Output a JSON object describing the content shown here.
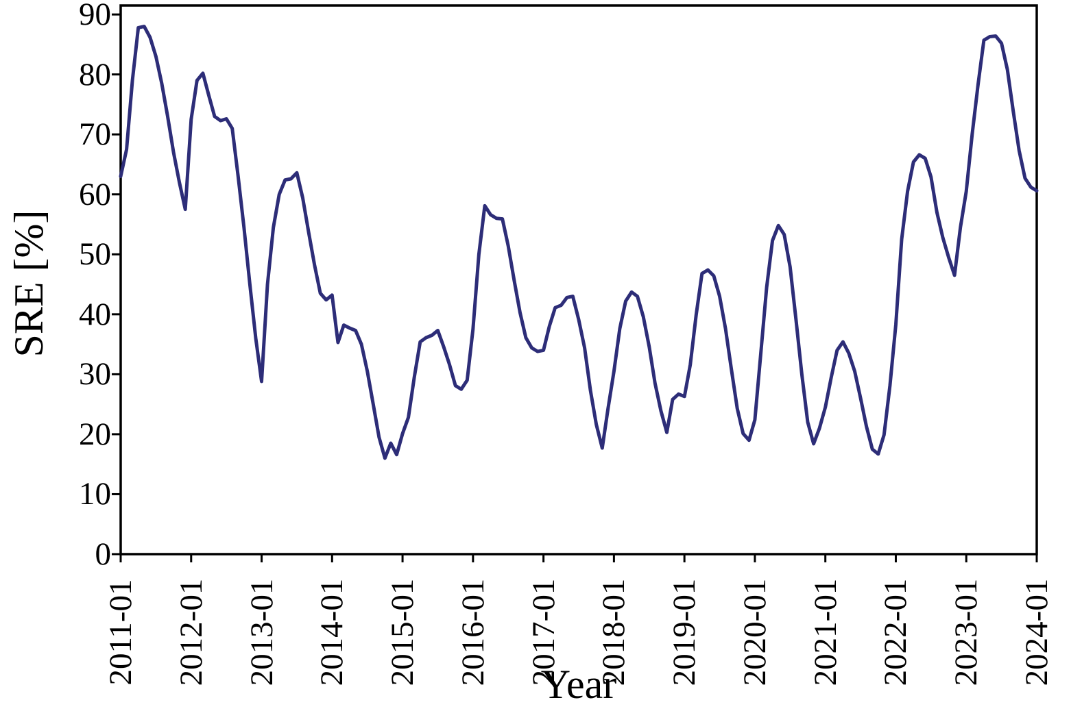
{
  "figure": {
    "background": "#ffffff",
    "xlabel": "Year",
    "ylabel": "SRE [%]"
  },
  "chart_data": {
    "type": "line",
    "title": "",
    "xlabel": "Year",
    "ylabel": "SRE [%]",
    "x_start": "2011-01",
    "x_end": "2024-01",
    "x_frequency": "monthly",
    "x_tick_labels": [
      "2011-01",
      "2012-01",
      "2013-01",
      "2014-01",
      "2015-01",
      "2016-01",
      "2017-01",
      "2018-01",
      "2019-01",
      "2020-01",
      "2021-01",
      "2022-01",
      "2023-01",
      "2024-01"
    ],
    "x_tick_every_n_points": 12,
    "y_ticks": [
      0,
      10,
      20,
      30,
      40,
      50,
      60,
      70,
      80,
      90
    ],
    "ylim": [
      0,
      91.5
    ],
    "grid": false,
    "legend": "none",
    "line_color": "#2d2d78",
    "axis_color": "#000000",
    "series": [
      {
        "name": "SRE [%]",
        "values": [
          63.0,
          67.5,
          79.0,
          87.8,
          88.0,
          86.2,
          83.0,
          78.5,
          73.0,
          67.0,
          62.0,
          57.5,
          72.5,
          79.0,
          80.2,
          76.5,
          73.0,
          72.3,
          72.6,
          71.0,
          63.0,
          54.5,
          45.0,
          36.0,
          28.8,
          45.0,
          54.5,
          60.0,
          62.4,
          62.6,
          63.6,
          59.4,
          53.7,
          48.3,
          43.5,
          42.4,
          43.2,
          35.3,
          38.2,
          37.7,
          37.3,
          35.0,
          30.5,
          25.0,
          19.5,
          16.0,
          18.5,
          16.6,
          20.1,
          22.8,
          29.5,
          35.4,
          36.1,
          36.5,
          37.3,
          34.6,
          31.6,
          28.1,
          27.5,
          29.0,
          37.5,
          50.0,
          58.1,
          56.6,
          56.0,
          55.9,
          51.4,
          45.7,
          40.3,
          36.1,
          34.4,
          33.8,
          34.0,
          38.0,
          41.1,
          41.5,
          42.8,
          43.0,
          39.1,
          34.4,
          27.3,
          21.6,
          17.7,
          24.3,
          30.5,
          37.6,
          42.2,
          43.7,
          43.0,
          39.6,
          34.6,
          28.5,
          23.9,
          20.3,
          25.8,
          26.7,
          26.3,
          31.6,
          39.9,
          46.8,
          47.4,
          46.4,
          43.0,
          37.6,
          30.8,
          24.3,
          20.1,
          19.0,
          22.4,
          33.4,
          44.5,
          52.3,
          54.8,
          53.3,
          47.9,
          39.1,
          30.0,
          22.0,
          18.4,
          21.0,
          24.5,
          29.5,
          34.0,
          35.4,
          33.5,
          30.5,
          26.0,
          21.3,
          17.5,
          16.7,
          19.9,
          28.1,
          38.3,
          52.5,
          60.5,
          65.4,
          66.6,
          66.0,
          62.9,
          57.0,
          52.8,
          49.5,
          46.5,
          54.5,
          60.5,
          70.0,
          78.3,
          85.7,
          86.3,
          86.4,
          85.2,
          80.8,
          73.9,
          67.3,
          62.7,
          61.2,
          60.6
        ]
      }
    ]
  }
}
